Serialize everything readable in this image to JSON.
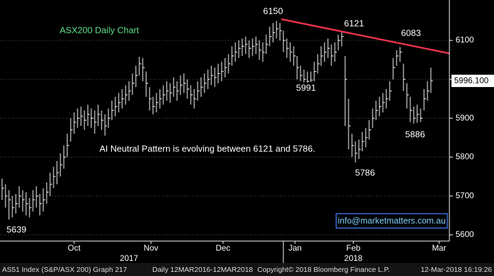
{
  "chart_data": {
    "type": "hlc",
    "title": "ASX200 Daily Chart",
    "note": "AI Neutral Pattern is evolving between 6121 and 5786.",
    "annotations": [
      "6150",
      "6121",
      "6083",
      "5991",
      "5786",
      "5886",
      "5639"
    ],
    "last_price_label": "5996.100",
    "watermark": "info@marketmatters.com.au",
    "footer": [
      "AS51 Index (S&P/ASX 200) Graph 217",
      "Daily 12MAR2016-12MAR2018",
      "Copyright© 2018 Bloomberg Finance L.P.",
      "12-Mar-2018 16:19:26"
    ],
    "color": "#ffffff",
    "trendline_color": "#e8334a",
    "ylim": [
      5584,
      6204
    ],
    "yticks": [
      5600,
      5700,
      5800,
      5900,
      6000,
      6100
    ],
    "xlim": [
      -0.6,
      130.4
    ],
    "xticks": [
      {
        "value": 21,
        "label": "Oct"
      },
      {
        "value": 43.4,
        "label": "Nov"
      },
      {
        "value": 64.4,
        "label": "Dec"
      },
      {
        "value": 85.4,
        "label": "Jan"
      },
      {
        "value": 102.4,
        "label": "Feb"
      },
      {
        "value": 127.4,
        "label": "Mar"
      }
    ],
    "years": [
      {
        "value": 37,
        "label": "2017"
      },
      {
        "value": 102.4,
        "label": "2018"
      }
    ],
    "grid": true,
    "close": [
      5720,
      5700,
      5690,
      5670,
      5680,
      5700,
      5690,
      5680,
      5670,
      5690,
      5700,
      5680,
      5690,
      5710,
      5730,
      5750,
      5760,
      5780,
      5800,
      5830,
      5870,
      5890,
      5900,
      5905,
      5895,
      5910,
      5900,
      5890,
      5910,
      5895,
      5880,
      5900,
      5920,
      5930,
      5940,
      5950,
      5960,
      5970,
      5990,
      6010,
      6040,
      6030,
      5990,
      5950,
      5930,
      5940,
      5950,
      5960,
      5970,
      5965,
      5980,
      5970,
      5985,
      5990,
      5975,
      5960,
      5950,
      5970,
      5980,
      5990,
      6000,
      6010,
      6005,
      6015,
      6020,
      6030,
      6040,
      6060,
      6070,
      6080,
      6085,
      6090,
      6080,
      6085,
      6090,
      6075,
      6070,
      6090,
      6110,
      6120,
      6130,
      6125,
      6100,
      6080,
      6070,
      6060,
      6030,
      6010,
      6000,
      5995,
      5998,
      6020,
      6040,
      6060,
      6070,
      6080,
      6060,
      6070,
      6100,
      6110,
      6000,
      5880,
      5830,
      5810,
      5820,
      5840,
      5850,
      5870,
      5900,
      5920,
      5930,
      5940,
      5950,
      5970,
      6030,
      6060,
      6070,
      6000,
      5960,
      5920,
      5900,
      5910,
      5900,
      5950,
      5970,
      5996
    ],
    "high": [
      5745,
      5730,
      5715,
      5700,
      5705,
      5725,
      5715,
      5710,
      5695,
      5715,
      5725,
      5705,
      5720,
      5735,
      5760,
      5775,
      5790,
      5810,
      5830,
      5860,
      5900,
      5915,
      5925,
      5930,
      5920,
      5935,
      5925,
      5920,
      5935,
      5920,
      5910,
      5925,
      5945,
      5955,
      5965,
      5975,
      5985,
      5995,
      6015,
      6035,
      6058,
      6055,
      6020,
      5980,
      5955,
      5965,
      5975,
      5985,
      5995,
      5990,
      6005,
      5995,
      6010,
      6015,
      6000,
      5985,
      5975,
      5995,
      6005,
      6015,
      6025,
      6035,
      6030,
      6040,
      6045,
      6055,
      6065,
      6085,
      6095,
      6100,
      6105,
      6110,
      6100,
      6105,
      6110,
      6100,
      6095,
      6115,
      6135,
      6145,
      6150,
      6145,
      6125,
      6105,
      6095,
      6085,
      6060,
      6035,
      6025,
      6020,
      6020,
      6045,
      6065,
      6085,
      6095,
      6105,
      6090,
      6095,
      6115,
      6121,
      6060,
      5950,
      5860,
      5840,
      5845,
      5865,
      5875,
      5895,
      5925,
      5945,
      5955,
      5965,
      5975,
      5995,
      6055,
      6075,
      6083,
      6040,
      5990,
      5955,
      5930,
      5935,
      5925,
      5975,
      5995,
      6030
    ],
    "low": [
      5690,
      5670,
      5639,
      5645,
      5655,
      5670,
      5660,
      5650,
      5645,
      5660,
      5670,
      5650,
      5660,
      5680,
      5700,
      5720,
      5730,
      5750,
      5770,
      5800,
      5840,
      5860,
      5875,
      5880,
      5870,
      5880,
      5875,
      5860,
      5880,
      5870,
      5855,
      5875,
      5895,
      5905,
      5915,
      5925,
      5935,
      5945,
      5960,
      5980,
      6010,
      5995,
      5955,
      5920,
      5910,
      5915,
      5925,
      5935,
      5945,
      5940,
      5955,
      5945,
      5960,
      5965,
      5950,
      5935,
      5925,
      5945,
      5955,
      5965,
      5975,
      5985,
      5980,
      5990,
      5995,
      6005,
      6015,
      6035,
      6045,
      6055,
      6060,
      6065,
      6055,
      6060,
      6065,
      6050,
      6045,
      6065,
      6085,
      6095,
      6105,
      6100,
      6070,
      6055,
      6045,
      6035,
      6000,
      5995,
      5992,
      5991,
      5993,
      5995,
      6015,
      6035,
      6045,
      6055,
      6035,
      6045,
      6075,
      6085,
      5880,
      5820,
      5800,
      5786,
      5795,
      5815,
      5825,
      5845,
      5875,
      5895,
      5905,
      5915,
      5925,
      5945,
      6000,
      6035,
      6045,
      5970,
      5925,
      5890,
      5886,
      5888,
      5890,
      5920,
      5945,
      5965
    ]
  }
}
